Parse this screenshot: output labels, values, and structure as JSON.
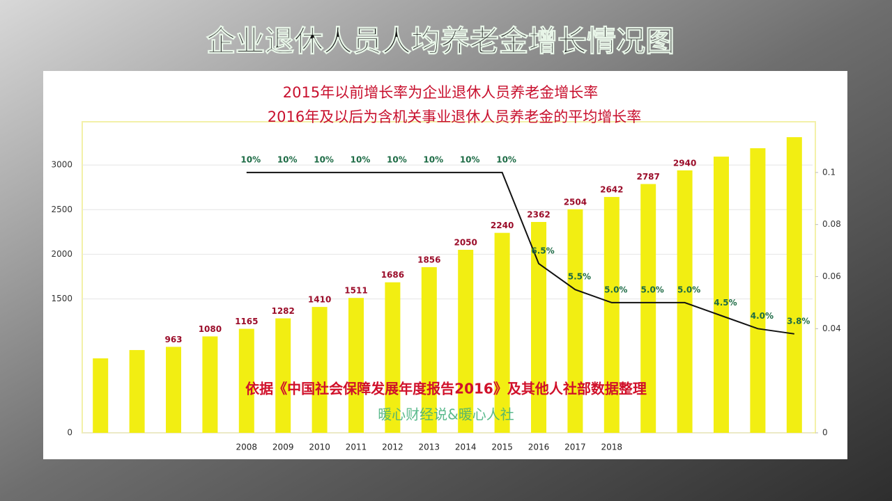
{
  "chart_data": {
    "type": "bar",
    "title": "企业退休人员人均养老金增长情况图",
    "subtitle": [
      "2015年以前增长率为企业退休人员养老金增长率",
      "2016年及以后为含机关事业退休人员养老金的平均增长率"
    ],
    "annotations": [
      "依据《中国社会保障发展年度报告2016》及其他人社部数据整理",
      "暖心财经说&暖心人社"
    ],
    "categories": [
      null,
      null,
      null,
      null,
      "2008",
      "2009",
      "2010",
      "2011",
      "2012",
      "2013",
      "2014",
      "2015",
      "2016",
      "2017",
      "2018",
      null,
      null,
      null,
      null,
      null
    ],
    "series": [
      {
        "type": "bar",
        "color": "#f2ee12",
        "values": [
          834,
          927,
          963,
          1080,
          1165,
          1282,
          1410,
          1511,
          1686,
          1856,
          2050,
          2240,
          2362,
          2504,
          2642,
          2787,
          2940,
          3094,
          3188,
          3312
        ],
        "value_labels": [
          null,
          null,
          "963",
          "1080",
          "1165",
          "1282",
          "1410",
          "1511",
          "1686",
          "1856",
          "2050",
          "2240",
          "2362",
          "2504",
          "2642",
          "2787",
          "2940",
          null,
          null,
          null
        ]
      },
      {
        "type": "line",
        "axis": "y2",
        "color": "#111111",
        "values": [
          null,
          null,
          null,
          null,
          0.1,
          0.1,
          0.1,
          0.1,
          0.1,
          0.1,
          0.1,
          0.1,
          0.065,
          0.055,
          0.05,
          0.05,
          0.05,
          0.045,
          0.04,
          0.038
        ],
        "value_labels": [
          null,
          null,
          null,
          null,
          "10%",
          "10%",
          "10%",
          "10%",
          "10%",
          "10%",
          "10%",
          "10%",
          "6.5%",
          "5.5%",
          "5.0%",
          "5.0%",
          "5.0%",
          "4.5%",
          "4.0%",
          "3.8%"
        ]
      }
    ],
    "ylim": [
      0,
      3500
    ],
    "yticks": [
      0,
      1500,
      2000,
      2500,
      3000
    ],
    "y2lim": [
      0,
      0.12
    ],
    "y2ticks": [
      0,
      0.04,
      0.06,
      0.08,
      0.1
    ]
  }
}
